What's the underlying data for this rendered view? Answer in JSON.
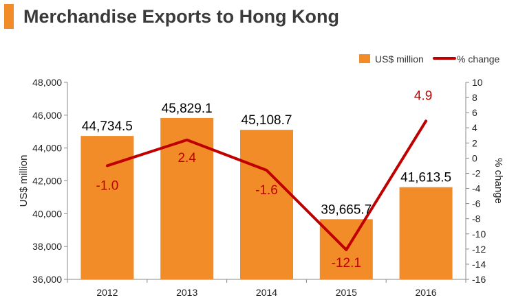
{
  "chart_data": {
    "type": "bar",
    "title": "Merchandise Exports to Hong Kong",
    "categories": [
      "2012",
      "2013",
      "2014",
      "2015",
      "2016"
    ],
    "series": [
      {
        "name": "US$ million",
        "type": "bar",
        "axis": "left",
        "values": [
          44734.5,
          45829.1,
          45108.7,
          39665.7,
          41613.5
        ],
        "labels": [
          "44,734.5",
          "45,829.1",
          "45,108.7",
          "39,665.7",
          "41,613.5"
        ],
        "color": "#f28c28"
      },
      {
        "name": "% change",
        "type": "line",
        "axis": "right",
        "values": [
          -1.0,
          2.4,
          -1.6,
          -12.1,
          4.9
        ],
        "labels": [
          "-1.0",
          "2.4",
          "-1.6",
          "-12.1",
          "4.9"
        ],
        "color": "#c00000"
      }
    ],
    "ylabel": "US$ million",
    "y2label": "% change",
    "ylim": [
      36000,
      48000
    ],
    "y2lim": [
      -16,
      10
    ],
    "yticks": [
      "36,000",
      "38,000",
      "40,000",
      "42,000",
      "44,000",
      "46,000",
      "48,000"
    ],
    "y2ticks": [
      "-16",
      "-14",
      "-12",
      "-10",
      "-8",
      "-6",
      "-4",
      "-2",
      "0",
      "2",
      "4",
      "6",
      "8",
      "10"
    ],
    "grid": false,
    "legend": "top-right",
    "label_color": "#000000",
    "line_label_color": "#c00000",
    "axis_color": "#888888"
  }
}
